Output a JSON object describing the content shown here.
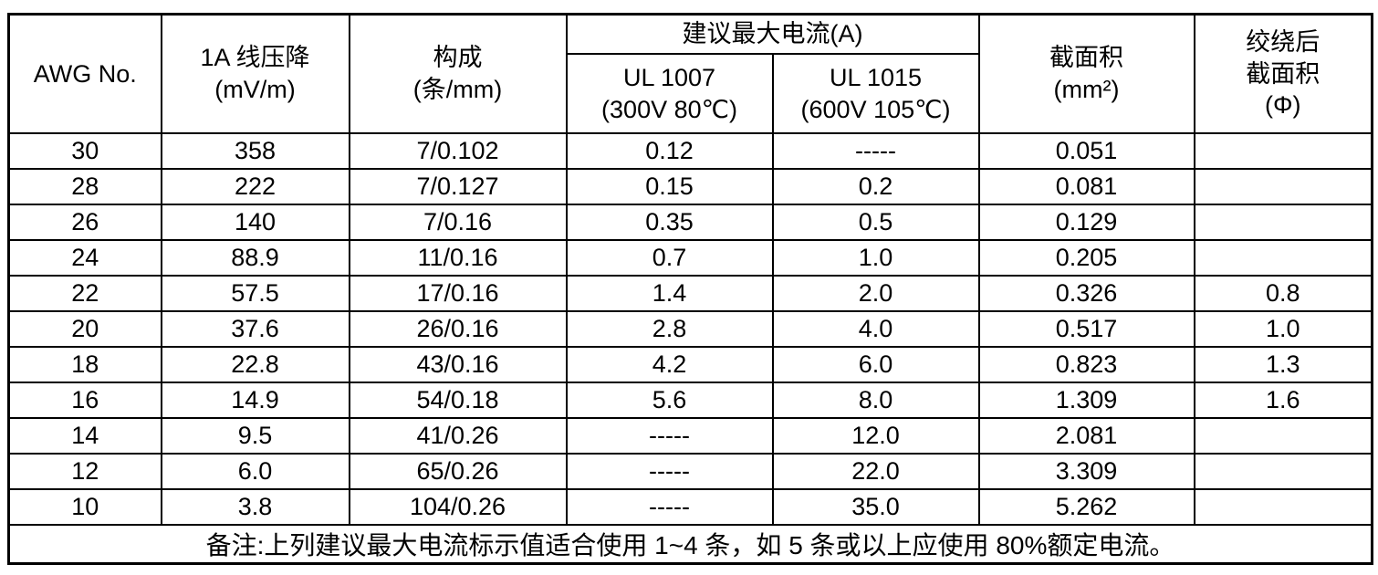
{
  "table": {
    "header": {
      "awg": "AWG No.",
      "voltage_drop": {
        "line1": "1A 线压降",
        "line2": "(mV/m)"
      },
      "construction": {
        "line1": "构成",
        "line2": "(条/mm)"
      },
      "max_current_group": "建议最大电流(A)",
      "ul1007": {
        "line1": "UL 1007",
        "line2": "(300V 80℃)"
      },
      "ul1015": {
        "line1": "UL 1015",
        "line2": "(600V 105℃)"
      },
      "cross_section": {
        "line1": "截面积",
        "line2": "(mm²)"
      },
      "twisted_cross_section": {
        "line1": "绞绕后",
        "line2": "截面积",
        "line3": "(Φ)"
      }
    },
    "column_keys": [
      "awg",
      "voltage-drop",
      "construction",
      "ul1007",
      "ul1015",
      "cross-section",
      "twisted-cross-section"
    ],
    "rows": [
      [
        "30",
        "358",
        "7/0.102",
        "0.12",
        "-----",
        "0.051",
        ""
      ],
      [
        "28",
        "222",
        "7/0.127",
        "0.15",
        "0.2",
        "0.081",
        ""
      ],
      [
        "26",
        "140",
        "7/0.16",
        "0.35",
        "0.5",
        "0.129",
        ""
      ],
      [
        "24",
        "88.9",
        "11/0.16",
        "0.7",
        "1.0",
        "0.205",
        ""
      ],
      [
        "22",
        "57.5",
        "17/0.16",
        "1.4",
        "2.0",
        "0.326",
        "0.8"
      ],
      [
        "20",
        "37.6",
        "26/0.16",
        "2.8",
        "4.0",
        "0.517",
        "1.0"
      ],
      [
        "18",
        "22.8",
        "43/0.16",
        "4.2",
        "6.0",
        "0.823",
        "1.3"
      ],
      [
        "16",
        "14.9",
        "54/0.18",
        "5.6",
        "8.0",
        "1.309",
        "1.6"
      ],
      [
        "14",
        "9.5",
        "41/0.26",
        "-----",
        "12.0",
        "2.081",
        ""
      ],
      [
        "12",
        "6.0",
        "65/0.26",
        "-----",
        "22.0",
        "3.309",
        ""
      ],
      [
        "10",
        "3.8",
        "104/0.26",
        "-----",
        "35.0",
        "5.262",
        ""
      ]
    ],
    "note": "备注:上列建议最大电流标示值适合使用 1~4 条，如 5 条或以上应使用 80%额定电流。"
  },
  "colors": {
    "border": "#000000",
    "text": "#000000",
    "background": "#ffffff"
  }
}
